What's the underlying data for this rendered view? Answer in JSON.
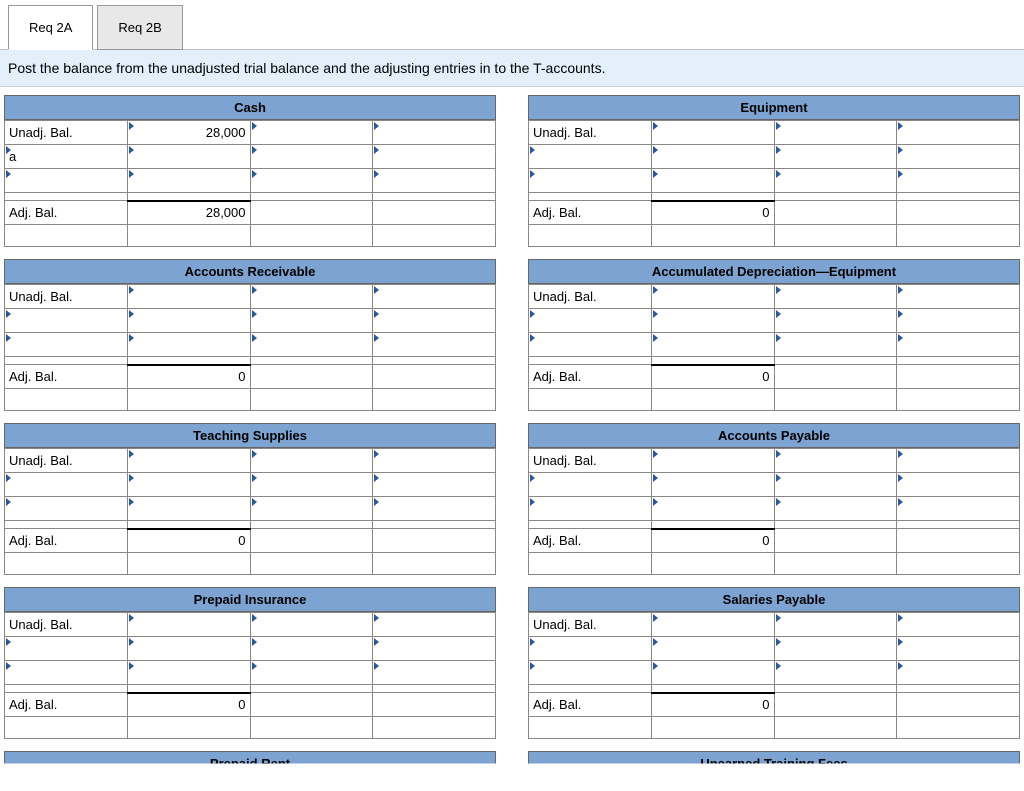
{
  "tabs": {
    "req2a": "Req 2A",
    "req2b": "Req 2B"
  },
  "instruction": "Post the balance from the unadjusted trial balance and the adjusting entries in to the T-accounts.",
  "labels": {
    "unadj": "Unadj. Bal.",
    "adj": "Adj. Bal.",
    "entry_a": "a"
  },
  "colors": {
    "header_bg": "#7ca3d1",
    "instruction_bg": "#e3f0fb",
    "marker": "#2a5a9a",
    "border": "#888888"
  },
  "left_col": [
    {
      "title": "Cash",
      "unadj_debit": "28,000",
      "row2_label": "a",
      "adj_debit": "28,000"
    },
    {
      "title": "Accounts Receivable",
      "unadj_debit": "",
      "row2_label": "",
      "adj_debit": "0"
    },
    {
      "title": "Teaching Supplies",
      "unadj_debit": "",
      "row2_label": "",
      "adj_debit": "0"
    },
    {
      "title": "Prepaid Insurance",
      "unadj_debit": "",
      "row2_label": "",
      "adj_debit": "0"
    }
  ],
  "right_col": [
    {
      "title": "Equipment",
      "unadj_debit": "",
      "row2_label": "",
      "adj_debit": "0"
    },
    {
      "title": "Accumulated Depreciation—Equipment",
      "unadj_debit": "",
      "row2_label": "",
      "adj_debit": "0"
    },
    {
      "title": "Accounts Payable",
      "unadj_debit": "",
      "row2_label": "",
      "adj_debit": "0"
    },
    {
      "title": "Salaries Payable",
      "unadj_debit": "",
      "row2_label": "",
      "adj_debit": "0"
    }
  ],
  "partial": {
    "left": "Prepaid Rent",
    "right": "Unearned Training Fees"
  }
}
